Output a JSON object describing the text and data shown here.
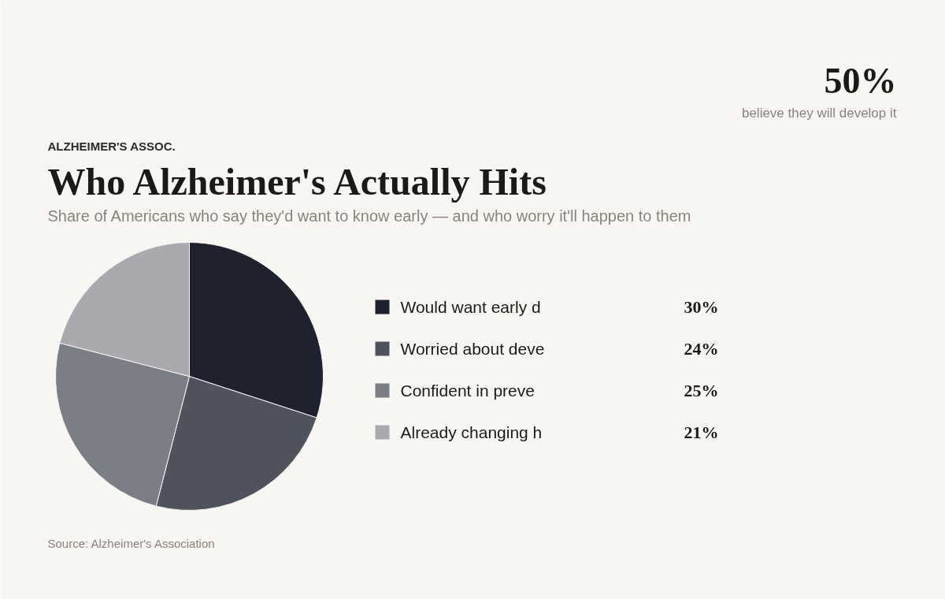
{
  "chart_data": {
    "type": "pie",
    "title": "Who Alzheimer's Actually Hits",
    "subtitle": "Share of Americans who say they'd want to know early — and who worry it'll happen to them",
    "categories": [
      "Would want early d",
      "Worried about deve",
      "Confident in preve",
      "Already changing h"
    ],
    "values": [
      30,
      24,
      25,
      21
    ],
    "colors": [
      "#1f222e",
      "#4f535e",
      "#7b7e85",
      "#a9a9ae"
    ],
    "value_labels": [
      "30%",
      "24%",
      "25%",
      "21%"
    ],
    "legend": "right",
    "annotations": [
      "ALZHEIMER'S ASSOC.",
      "50%",
      "believe they will develop it",
      "Source: Alzheimer's Association"
    ]
  }
}
